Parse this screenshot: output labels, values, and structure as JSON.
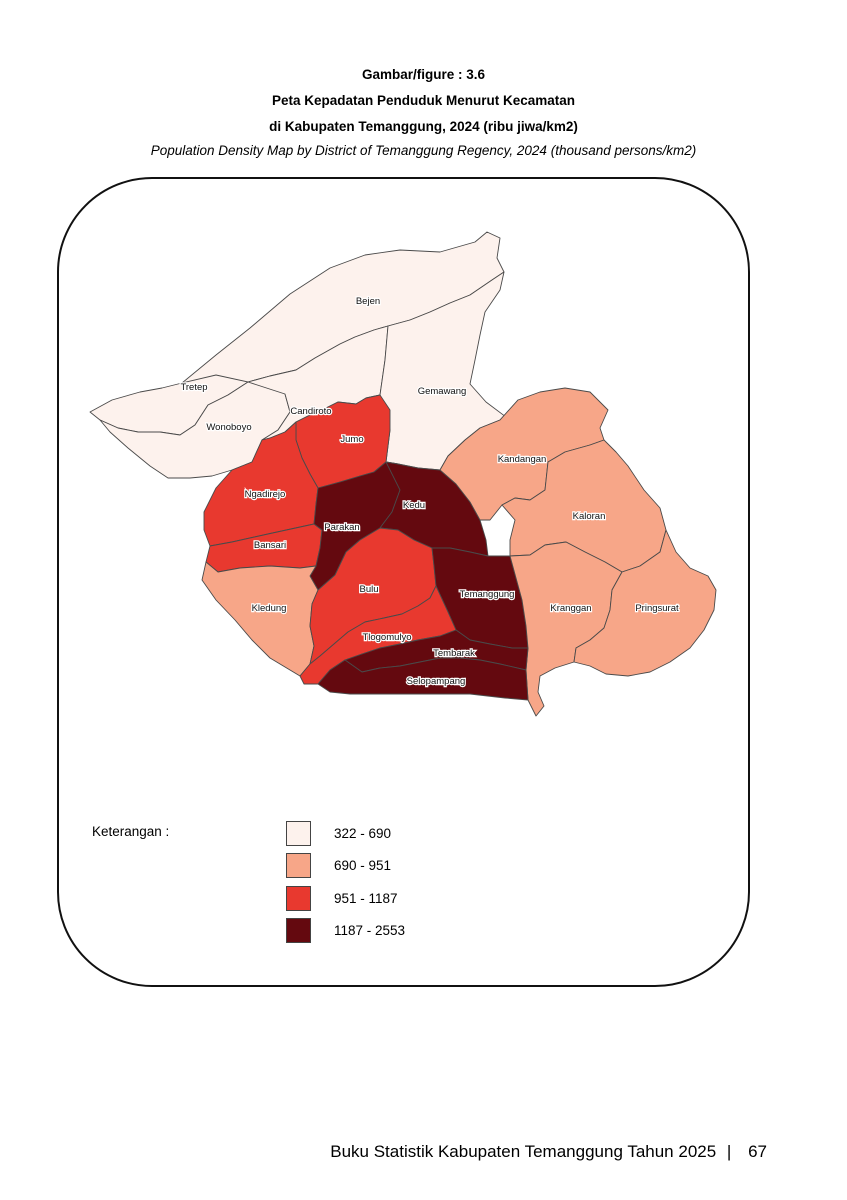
{
  "header": {
    "figure_number": "Gambar/figure : 3.6",
    "title_id_line1": "Peta Kepadatan Penduduk  Menurut Kecamatan",
    "title_id_line2": "di Kabupaten Temanggung, 2024 (ribu jiwa/km2)",
    "title_en": "Population Density Map by District of Temanggung Regency, 2024 (thousand persons/km2)"
  },
  "map": {
    "class_colors": [
      "#fdf2ed",
      "#f7a688",
      "#e8392f",
      "#64090f"
    ],
    "districts": [
      {
        "name": "Bejen",
        "density_class": 0
      },
      {
        "name": "Tretep",
        "density_class": 0
      },
      {
        "name": "Wonoboyo",
        "density_class": 0
      },
      {
        "name": "Candiroto",
        "density_class": 0
      },
      {
        "name": "Gemawang",
        "density_class": 0
      },
      {
        "name": "Jumo",
        "density_class": 2
      },
      {
        "name": "Ngadirejo",
        "density_class": 2
      },
      {
        "name": "Bansari",
        "density_class": 2
      },
      {
        "name": "Parakan",
        "density_class": 3
      },
      {
        "name": "Kedu",
        "density_class": 3
      },
      {
        "name": "Kandangan",
        "density_class": 1
      },
      {
        "name": "Kaloran",
        "density_class": 1
      },
      {
        "name": "Kledung",
        "density_class": 1
      },
      {
        "name": "Bulu",
        "density_class": 2
      },
      {
        "name": "Temanggung",
        "density_class": 3
      },
      {
        "name": "Kranggan",
        "density_class": 1
      },
      {
        "name": "Pringsurat",
        "density_class": 1
      },
      {
        "name": "Tlogomulyo",
        "density_class": 2
      },
      {
        "name": "Tembarak",
        "density_class": 3
      },
      {
        "name": "Selopampang",
        "density_class": 3
      }
    ]
  },
  "legend": {
    "title": "Keterangan :",
    "items": [
      {
        "label": "322 - 690",
        "color": "#fdf2ed"
      },
      {
        "label": "690 - 951",
        "color": "#f7a688"
      },
      {
        "label": "951 - 1187",
        "color": "#e8392f"
      },
      {
        "label": "1187 - 2553",
        "color": "#64090f"
      }
    ]
  },
  "footer": {
    "text": "Buku Statistik Kabupaten Temanggung Tahun 2025",
    "separator": "|",
    "page_number": "67"
  }
}
